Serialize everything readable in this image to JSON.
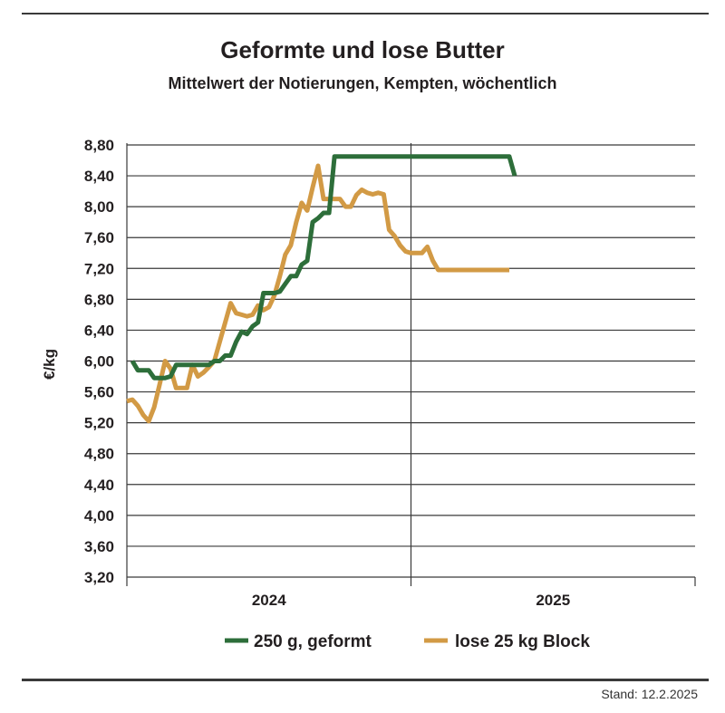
{
  "colors": {
    "series_green": "#2d6e3a",
    "series_orange": "#d29a45",
    "grid": "#3a3a3a"
  },
  "stand": "Stand: 12.2.2025",
  "chart_data": {
    "type": "line",
    "title": "Geformte und lose Butter",
    "subtitle": "Mittelwert der Notierungen, Kempten, wöchentlich",
    "xlabel": "",
    "ylabel": "€/kg",
    "ylim": [
      3.2,
      8.8
    ],
    "ytick_labels": [
      "8,80",
      "8,40",
      "8,00",
      "7,60",
      "7,20",
      "6,80",
      "6,40",
      "6,00",
      "5,60",
      "5,20",
      "4,80",
      "4,40",
      "4,00",
      "3,60",
      "3,20"
    ],
    "x_unit": "calendar week (weeks since start of 2024)",
    "xlim": [
      0,
      104
    ],
    "x_categories": [
      "2024",
      "2025"
    ],
    "grid": true,
    "legend_position": "bottom",
    "series": [
      {
        "name": "250 g, geformt",
        "color": "#2d6e3a",
        "x": [
          1,
          2,
          3,
          4,
          5,
          6,
          7,
          8,
          9,
          10,
          11,
          12,
          13,
          14,
          15,
          16,
          17,
          18,
          19,
          20,
          21,
          22,
          23,
          24,
          25,
          26,
          27,
          28,
          29,
          30,
          31,
          32,
          33,
          34,
          35,
          36,
          37,
          38,
          39,
          40,
          41,
          42,
          43,
          44,
          45,
          46,
          47,
          48,
          49,
          50,
          51,
          52,
          53,
          54,
          55,
          56,
          57,
          58,
          59,
          60,
          61,
          62,
          63,
          64,
          65,
          66,
          67,
          68,
          69,
          70,
          71
        ],
        "values": [
          6.0,
          5.88,
          5.88,
          5.88,
          5.78,
          5.78,
          5.78,
          5.8,
          5.95,
          5.95,
          5.95,
          5.95,
          5.95,
          5.95,
          5.95,
          6.0,
          6.0,
          6.07,
          6.07,
          6.25,
          6.38,
          6.35,
          6.45,
          6.5,
          6.88,
          6.88,
          6.88,
          6.9,
          7.0,
          7.1,
          7.1,
          7.25,
          7.3,
          7.8,
          7.85,
          7.92,
          7.92,
          8.65,
          8.65,
          8.65,
          8.65,
          8.65,
          8.65,
          8.65,
          8.65,
          8.65,
          8.65,
          8.65,
          8.65,
          8.65,
          8.65,
          8.65,
          8.65,
          8.65,
          8.65,
          8.65,
          8.65,
          8.65,
          8.65,
          8.65,
          8.65,
          8.65,
          8.65,
          8.65,
          8.65,
          8.65,
          8.65,
          8.65,
          8.65,
          8.65,
          8.4
        ]
      },
      {
        "name": "lose 25 kg Block",
        "color": "#d29a45",
        "x": [
          0,
          1,
          2,
          3,
          4,
          5,
          6,
          7,
          8,
          9,
          10,
          11,
          12,
          13,
          14,
          15,
          16,
          17,
          18,
          19,
          20,
          21,
          22,
          23,
          24,
          25,
          26,
          27,
          28,
          29,
          30,
          31,
          32,
          33,
          34,
          35,
          36,
          37,
          38,
          39,
          40,
          41,
          42,
          43,
          44,
          45,
          46,
          47,
          48,
          49,
          50,
          51,
          52,
          53,
          54,
          55,
          56,
          57,
          58,
          59,
          60,
          61,
          62,
          63,
          64,
          65,
          66,
          67,
          68,
          69,
          70
        ],
        "values": [
          5.48,
          5.5,
          5.42,
          5.3,
          5.22,
          5.4,
          5.7,
          6.0,
          5.9,
          5.65,
          5.65,
          5.65,
          5.95,
          5.8,
          5.85,
          5.92,
          6.0,
          6.25,
          6.5,
          6.75,
          6.62,
          6.6,
          6.58,
          6.6,
          6.72,
          6.66,
          6.7,
          6.85,
          7.1,
          7.38,
          7.5,
          7.8,
          8.05,
          7.95,
          8.25,
          8.53,
          8.1,
          8.1,
          8.1,
          8.1,
          8.0,
          8.0,
          8.15,
          8.22,
          8.18,
          8.16,
          8.18,
          8.16,
          7.7,
          7.62,
          7.5,
          7.42,
          7.4,
          7.4,
          7.4,
          7.48,
          7.3,
          7.18,
          7.18,
          7.18,
          7.18,
          7.18,
          7.18,
          7.18,
          7.18,
          7.18,
          7.18,
          7.18,
          7.18,
          7.18,
          7.18
        ]
      }
    ]
  }
}
